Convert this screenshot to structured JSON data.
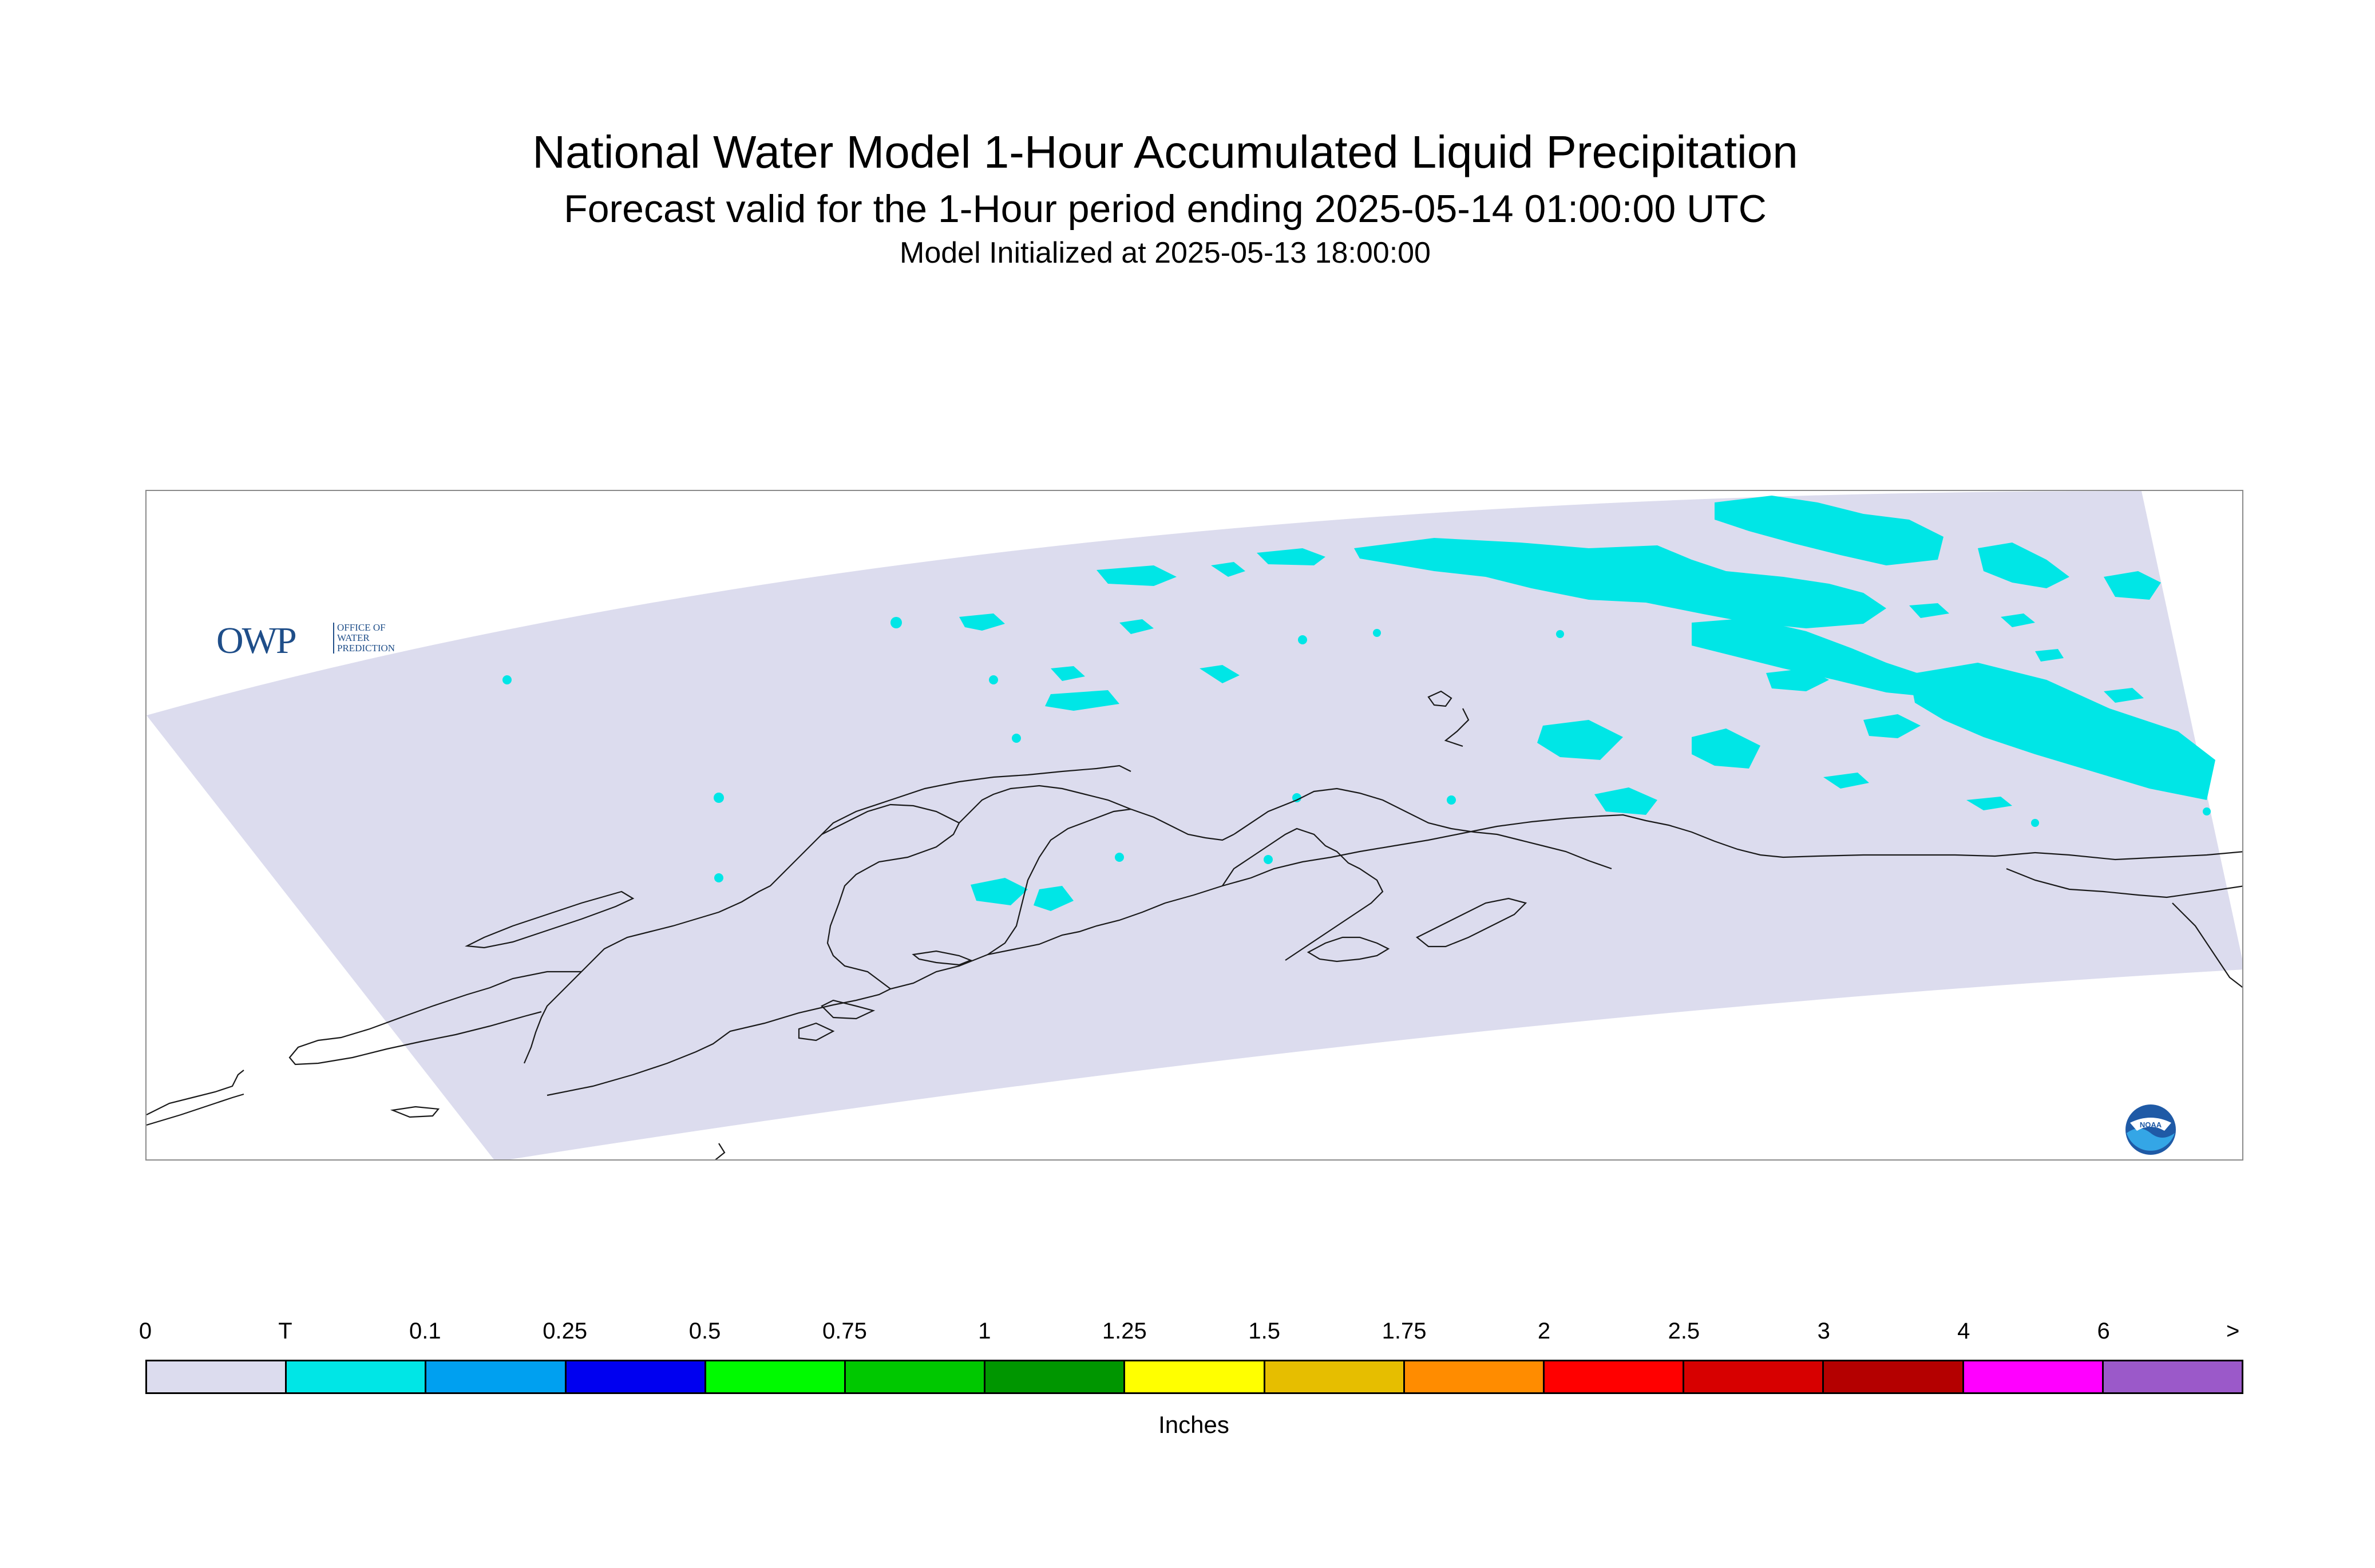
{
  "title": "National Water Model 1-Hour Accumulated Liquid Precipitation",
  "subtitle": "Forecast valid for the 1-Hour period ending 2025-05-14 01:00:00 UTC",
  "init": "Model Initialized at 2025-05-13 18:00:00",
  "map": {
    "region": "Alaska",
    "domain_color": "#dcdcee",
    "precip_color": "#00e6e6",
    "coastline_color": "#1a1a1a"
  },
  "logos": {
    "owp": {
      "mark": "OWP",
      "text_lines": [
        "OFFICE OF",
        "WATER",
        "PREDICTION"
      ],
      "icon": "owp-logo"
    },
    "noaa": {
      "text": "NOAA",
      "icon": "noaa-logo"
    }
  },
  "legend": {
    "ticks": [
      "0",
      "T",
      "0.1",
      "0.25",
      "0.5",
      "0.75",
      "1",
      "1.25",
      "1.5",
      "1.75",
      "2",
      "2.5",
      "3",
      "4",
      "6",
      ">"
    ],
    "colors": [
      "#dcdcee",
      "#00e6e6",
      "#00a0f0",
      "#0000f0",
      "#00fa00",
      "#00c800",
      "#009600",
      "#ffff00",
      "#e6be00",
      "#ff8c00",
      "#ff0000",
      "#d70000",
      "#b40000",
      "#ff00ff",
      "#9b59c9"
    ],
    "units": "Inches"
  }
}
